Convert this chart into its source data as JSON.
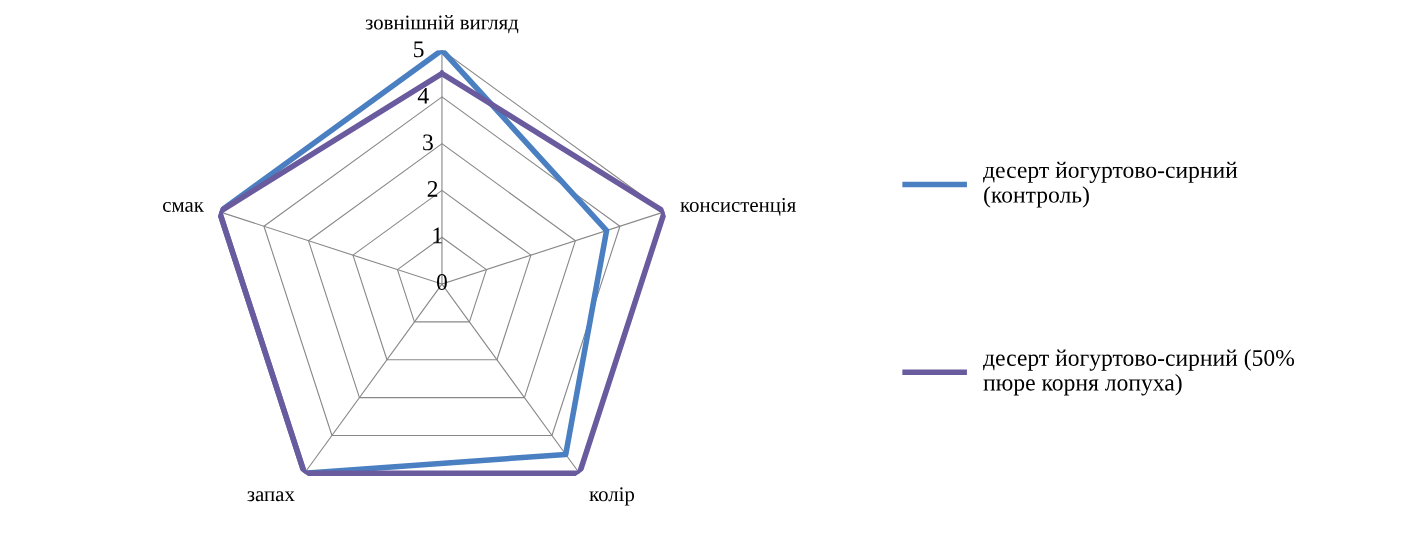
{
  "chart_data": {
    "type": "radar",
    "categories": [
      "зовнішній вигляд",
      "консистенція",
      "колір",
      "запах",
      "смак"
    ],
    "ylim": [
      0,
      5
    ],
    "yticks": [
      0,
      1,
      2,
      3,
      4,
      5
    ],
    "grid": true,
    "legend": "right",
    "line_style": "solid",
    "marker": "none",
    "series": [
      {
        "name": "десерт йогуртово-сирний (контроль)",
        "color": "#4a7fc1",
        "values": [
          5,
          3.7,
          4.5,
          5,
          5
        ]
      },
      {
        "name": "десерт йогуртово-сирний (50% пюре корня лопуха)",
        "color": "#6a5a9e",
        "values": [
          4.5,
          5,
          5,
          5,
          5
        ]
      }
    ]
  }
}
